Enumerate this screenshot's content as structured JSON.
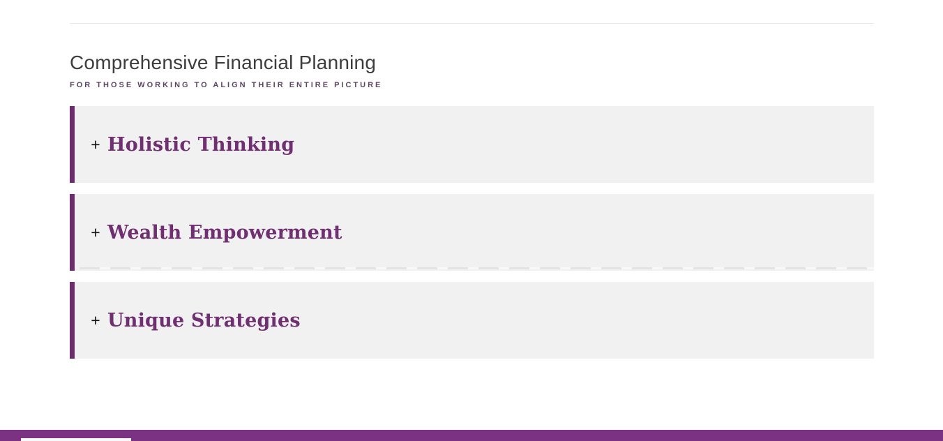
{
  "section": {
    "title": "Comprehensive Financial Planning",
    "subtitle": "FOR THOSE WORKING TO ALIGN THEIR ENTIRE PICTURE"
  },
  "accordion": {
    "items": [
      {
        "icon": "+",
        "title": "Holistic Thinking",
        "expanded": false
      },
      {
        "icon": "+",
        "title": "Wealth Empowerment",
        "expanded": false
      },
      {
        "icon": "+",
        "title": "Unique Strategies",
        "expanded": false
      }
    ]
  },
  "colors": {
    "accent_bar": "#6d2c6e",
    "accordion_title": "#6f2f71",
    "accordion_background": "#f1f1f1",
    "heading_text": "#3d3d3d",
    "subtitle_text": "#5c4663",
    "footer_bar": "#7c3282",
    "top_divider": "#e7e7e7",
    "plus_icon": "#141414"
  }
}
